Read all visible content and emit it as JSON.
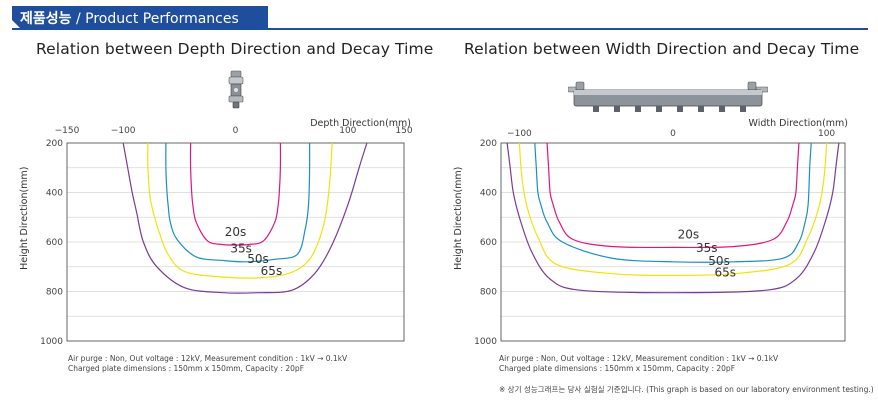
{
  "header": {
    "title_kr": "제품성능",
    "title_sep": " / ",
    "title_en": "Product Performances"
  },
  "colors": {
    "accent": "#1f4e9c",
    "series": [
      "#e0157f",
      "#1a8fc4",
      "#f2e20b",
      "#7a3b94"
    ]
  },
  "icons": {
    "depth": "nozzle-ionizer-icon",
    "width": "bar-ionizer-icon"
  },
  "footnote_lines": [
    "Air purge : Non, Out voltage : 12kV, Measurement condition : 1kV → 0.1kV",
    "Charged plate dimensions : 150mm x 150mm, Capacity : 20pF"
  ],
  "disclaimer": "※ 상기 성능그래프는 당사 실험실 기준입니다. (This graph is based on our laboratory environment testing.)",
  "chart_data": [
    {
      "type": "line",
      "title": "Relation between Depth Direction and Decay Time",
      "xlabel": "Depth Direction(mm)",
      "ylabel": "Height Direction(mm)",
      "xlim": [
        -150,
        150
      ],
      "ylim": [
        200,
        1000
      ],
      "x_ticks": [
        -150,
        -100,
        0,
        100,
        150
      ],
      "y_ticks": [
        200,
        400,
        600,
        800,
        1000
      ],
      "y_inverted": true,
      "grid": true,
      "series": [
        {
          "name": "20s",
          "label_pos": [
            0,
            575
          ],
          "x": [
            -40,
            -40,
            -39,
            -38,
            -35,
            -25,
            -12,
            0,
            12,
            25,
            35,
            38,
            39,
            40,
            40
          ],
          "y": [
            200,
            300,
            400,
            450,
            520,
            595,
            610,
            612,
            610,
            595,
            520,
            450,
            400,
            300,
            200
          ]
        },
        {
          "name": "35s",
          "label_pos": [
            5,
            642
          ],
          "x": [
            -62,
            -62,
            -61,
            -60,
            -58,
            -52,
            -35,
            -10,
            10,
            35,
            55,
            62,
            65,
            66,
            66
          ],
          "y": [
            200,
            300,
            400,
            450,
            520,
            590,
            660,
            675,
            680,
            670,
            650,
            550,
            450,
            300,
            200
          ]
        },
        {
          "name": "50s",
          "label_pos": [
            20,
            685
          ],
          "x": [
            -78,
            -78,
            -76,
            -72,
            -68,
            -60,
            -45,
            -10,
            20,
            45,
            62,
            72,
            80,
            84,
            86
          ],
          "y": [
            200,
            300,
            420,
            500,
            560,
            650,
            720,
            742,
            745,
            730,
            690,
            620,
            500,
            350,
            200
          ]
        },
        {
          "name": "65s",
          "label_pos": [
            32,
            733
          ],
          "x": [
            -100,
            -96,
            -92,
            -88,
            -82,
            -70,
            -45,
            -10,
            20,
            50,
            70,
            85,
            100,
            110,
            117
          ],
          "y": [
            200,
            300,
            400,
            480,
            600,
            700,
            785,
            805,
            805,
            795,
            730,
            620,
            450,
            300,
            200
          ]
        }
      ]
    },
    {
      "type": "line",
      "title": "Relation between Width Direction and Decay Time",
      "xlabel": "Width Direction(mm)",
      "ylabel": "Height Direction(mm)",
      "xlim": [
        -112,
        112
      ],
      "ylim": [
        200,
        1000
      ],
      "x_ticks": [
        -100,
        0,
        100
      ],
      "y_ticks": [
        200,
        400,
        600,
        800,
        1000
      ],
      "y_inverted": true,
      "grid": true,
      "series": [
        {
          "name": "20s",
          "label_pos": [
            10,
            585
          ],
          "x": [
            -82,
            -81,
            -80,
            -78,
            -74,
            -65,
            -40,
            0,
            40,
            65,
            74,
            78,
            80,
            81,
            82
          ],
          "y": [
            200,
            300,
            400,
            450,
            520,
            590,
            618,
            622,
            618,
            590,
            520,
            450,
            400,
            300,
            200
          ]
        },
        {
          "name": "35s",
          "label_pos": [
            22,
            640
          ],
          "x": [
            -90,
            -89,
            -88,
            -86,
            -82,
            -72,
            -40,
            0,
            40,
            72,
            82,
            86,
            88,
            89,
            90
          ],
          "y": [
            200,
            300,
            400,
            450,
            520,
            600,
            665,
            680,
            680,
            665,
            600,
            520,
            450,
            300,
            200
          ]
        },
        {
          "name": "50s",
          "label_pos": [
            30,
            692
          ],
          "x": [
            -100,
            -99,
            -97,
            -94,
            -88,
            -76,
            -40,
            0,
            40,
            76,
            88,
            94,
            97,
            99,
            100
          ],
          "y": [
            200,
            300,
            400,
            480,
            580,
            690,
            728,
            735,
            728,
            690,
            580,
            480,
            400,
            300,
            200
          ]
        },
        {
          "name": "65s",
          "label_pos": [
            34,
            740
          ],
          "x": [
            -108,
            -106,
            -104,
            -100,
            -92,
            -80,
            -60,
            0,
            60,
            80,
            92,
            100,
            104,
            106,
            108
          ],
          "y": [
            200,
            300,
            400,
            500,
            640,
            750,
            795,
            805,
            795,
            750,
            640,
            500,
            400,
            300,
            200
          ]
        }
      ]
    }
  ]
}
